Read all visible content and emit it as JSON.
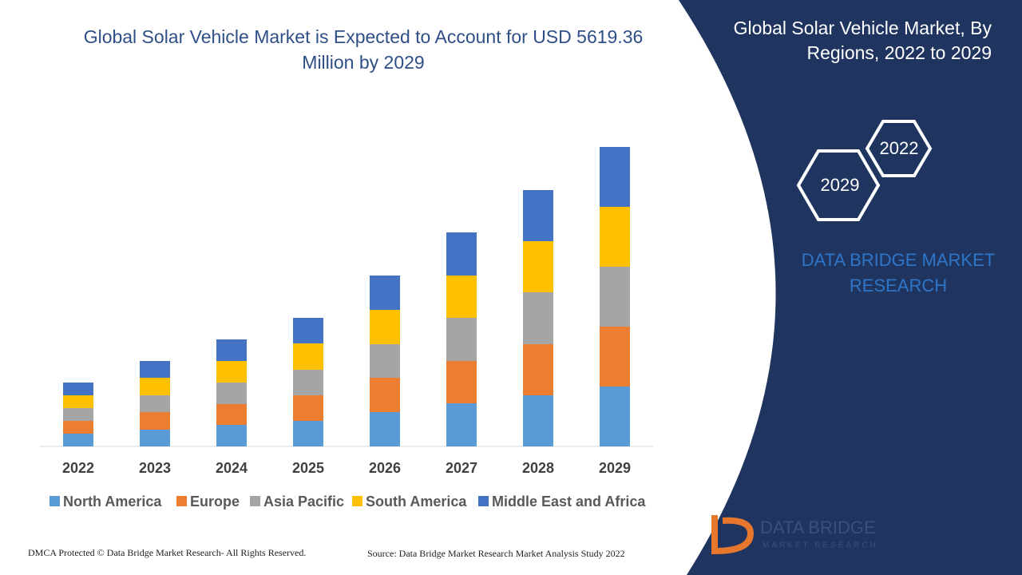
{
  "chart_data": {
    "type": "stacked_bar",
    "title": "Global Solar Vehicle Market is Expected to Account for USD 5619.36 Million by 2029",
    "categories": [
      "2022",
      "2023",
      "2024",
      "2025",
      "2026",
      "2027",
      "2028",
      "2029"
    ],
    "series": [
      {
        "name": "North America",
        "color": "#5b9bd5",
        "values": [
          16,
          21,
          27,
          32,
          43,
          54,
          64,
          75
        ]
      },
      {
        "name": "Europe",
        "color": "#ed7d31",
        "values": [
          16,
          22,
          26,
          32,
          43,
          53,
          64,
          75
        ]
      },
      {
        "name": "Asia Pacific",
        "color": "#a5a5a5",
        "values": [
          16,
          21,
          27,
          32,
          42,
          54,
          65,
          75
        ]
      },
      {
        "name": "South America",
        "color": "#ffc000",
        "values": [
          16,
          22,
          27,
          33,
          43,
          53,
          64,
          75
        ]
      },
      {
        "name": "Middle East and Africa",
        "color": "#4472c4",
        "values": [
          16,
          21,
          27,
          32,
          43,
          54,
          64,
          75
        ]
      }
    ],
    "ylim": [
      0,
      400
    ],
    "legend": "bottom"
  },
  "panel": {
    "title": "Global Solar Vehicle Market, By Regions, 2022 to 2029",
    "hex_back": "2022",
    "hex_front": "2029",
    "brand": "DATA BRIDGE MARKET RESEARCH"
  },
  "footer": {
    "copyright": "DMCA Protected © Data Bridge Market Research- All Rights Reserved.",
    "source": "Source: Data Bridge Market Research Market Analysis Study 2022",
    "logo_name": "DATA BRIDGE",
    "logo_tagline": "MARKET RESEARCH"
  }
}
